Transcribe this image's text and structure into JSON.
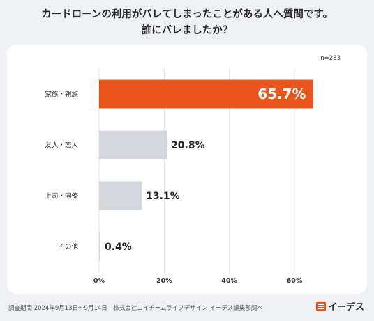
{
  "title_line1": "カードローンの利用がバレてしまったことがある人へ質問です。",
  "title_line2": "誰にバレましたか？",
  "sample": "n=283",
  "footer": "調査期間 2024年9月13日〜9月14日　株式会社エイチームライフデザイン イーデス編集部調べ",
  "logo_text": "イーデス",
  "colors": {
    "highlight": "#e8541a",
    "bar": "#d4d7dd",
    "grid": "#e3e5e9"
  },
  "chart_data": {
    "type": "bar",
    "orientation": "horizontal",
    "categories": [
      "家族・親族",
      "友人・恋人",
      "上司・同僚",
      "その他"
    ],
    "values": [
      65.7,
      20.8,
      13.1,
      0.4
    ],
    "value_labels": [
      "65.7%",
      "20.8%",
      "13.1%",
      "0.4%"
    ],
    "xlim": [
      0,
      70
    ],
    "xticks": [
      0,
      20,
      40,
      60
    ],
    "xtick_labels": [
      "0%",
      "20%",
      "40%",
      "60%"
    ],
    "grid": true,
    "highlight_index": 0
  }
}
